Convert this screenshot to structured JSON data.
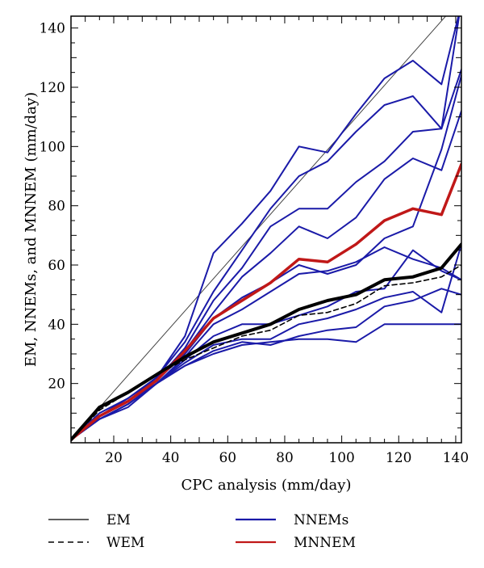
{
  "chart_data": {
    "type": "line",
    "xlabel": "CPC analysis (mm/day)",
    "ylabel": "EM, NNEMs, and MNNEM (mm/day)",
    "xlim": [
      5,
      142
    ],
    "ylim": [
      0,
      144
    ],
    "xticks": [
      20,
      40,
      60,
      80,
      100,
      120,
      140
    ],
    "yticks": [
      20,
      40,
      60,
      80,
      100,
      120,
      140
    ],
    "grid": false,
    "legend": {
      "position": "bottom",
      "items": [
        {
          "label": "EM",
          "style": "thin-solid",
          "color": "#000000"
        },
        {
          "label": "WEM",
          "style": "dashed",
          "color": "#000000"
        },
        {
          "label": "NNEMs",
          "style": "solid",
          "color": "#1a1aa8"
        },
        {
          "label": "MNNEM",
          "style": "solid",
          "color": "#c01818"
        }
      ]
    },
    "series": [
      {
        "role": "EM",
        "color": "#444444",
        "width": 1,
        "points": [
          [
            5,
            1
          ],
          [
            142,
            150
          ]
        ]
      },
      {
        "role": "NNEMs",
        "color": "#1a1aa8",
        "width": 2,
        "points": [
          [
            5,
            1
          ],
          [
            15,
            10
          ],
          [
            25,
            15
          ],
          [
            35,
            22
          ],
          [
            45,
            36
          ],
          [
            55,
            64
          ],
          [
            65,
            74
          ],
          [
            75,
            85
          ],
          [
            85,
            100
          ],
          [
            95,
            98
          ],
          [
            105,
            111
          ],
          [
            115,
            123
          ],
          [
            125,
            129
          ],
          [
            135,
            121
          ],
          [
            142,
            148
          ]
        ]
      },
      {
        "role": "NNEMs",
        "color": "#1a1aa8",
        "width": 2,
        "points": [
          [
            5,
            1
          ],
          [
            15,
            9
          ],
          [
            25,
            15
          ],
          [
            35,
            22
          ],
          [
            45,
            34
          ],
          [
            55,
            51
          ],
          [
            65,
            65
          ],
          [
            75,
            79
          ],
          [
            85,
            90
          ],
          [
            95,
            95
          ],
          [
            105,
            105
          ],
          [
            115,
            114
          ],
          [
            125,
            117
          ],
          [
            135,
            106
          ],
          [
            142,
            149
          ]
        ]
      },
      {
        "role": "NNEMs",
        "color": "#1a1aa8",
        "width": 2,
        "points": [
          [
            5,
            1
          ],
          [
            15,
            9
          ],
          [
            25,
            14
          ],
          [
            35,
            21
          ],
          [
            45,
            32
          ],
          [
            55,
            48
          ],
          [
            65,
            59
          ],
          [
            75,
            73
          ],
          [
            85,
            79
          ],
          [
            95,
            79
          ],
          [
            105,
            88
          ],
          [
            115,
            95
          ],
          [
            125,
            105
          ],
          [
            135,
            106
          ],
          [
            142,
            126
          ]
        ]
      },
      {
        "role": "NNEMs",
        "color": "#1a1aa8",
        "width": 2,
        "points": [
          [
            5,
            1
          ],
          [
            15,
            9
          ],
          [
            25,
            14
          ],
          [
            35,
            22
          ],
          [
            45,
            31
          ],
          [
            55,
            44
          ],
          [
            65,
            56
          ],
          [
            75,
            64
          ],
          [
            85,
            73
          ],
          [
            95,
            69
          ],
          [
            105,
            76
          ],
          [
            115,
            89
          ],
          [
            125,
            96
          ],
          [
            135,
            92
          ],
          [
            142,
            112
          ]
        ]
      },
      {
        "role": "NNEMs",
        "color": "#1a1aa8",
        "width": 2,
        "points": [
          [
            5,
            1
          ],
          [
            15,
            9
          ],
          [
            25,
            14
          ],
          [
            35,
            21
          ],
          [
            45,
            30
          ],
          [
            55,
            42
          ],
          [
            65,
            49
          ],
          [
            75,
            54
          ],
          [
            85,
            60
          ],
          [
            95,
            57
          ],
          [
            105,
            60
          ],
          [
            115,
            69
          ],
          [
            125,
            73
          ],
          [
            135,
            99
          ],
          [
            142,
            124
          ]
        ]
      },
      {
        "role": "NNEMs",
        "color": "#1a1aa8",
        "width": 2,
        "points": [
          [
            5,
            1
          ],
          [
            15,
            8
          ],
          [
            25,
            13
          ],
          [
            35,
            20
          ],
          [
            45,
            29
          ],
          [
            55,
            40
          ],
          [
            65,
            45
          ],
          [
            75,
            51
          ],
          [
            85,
            57
          ],
          [
            95,
            58
          ],
          [
            105,
            61
          ],
          [
            115,
            66
          ],
          [
            125,
            62
          ],
          [
            135,
            59
          ],
          [
            142,
            55
          ]
        ]
      },
      {
        "role": "NNEMs",
        "color": "#1a1aa8",
        "width": 2,
        "points": [
          [
            5,
            1
          ],
          [
            15,
            9
          ],
          [
            25,
            14
          ],
          [
            35,
            20
          ],
          [
            45,
            28
          ],
          [
            55,
            36
          ],
          [
            65,
            40
          ],
          [
            75,
            40
          ],
          [
            85,
            43
          ],
          [
            95,
            46
          ],
          [
            105,
            51
          ],
          [
            115,
            52
          ],
          [
            125,
            65
          ],
          [
            135,
            58
          ],
          [
            142,
            55
          ]
        ]
      },
      {
        "role": "NNEMs",
        "color": "#1a1aa8",
        "width": 2,
        "points": [
          [
            5,
            1
          ],
          [
            15,
            8
          ],
          [
            25,
            13
          ],
          [
            35,
            20
          ],
          [
            45,
            27
          ],
          [
            55,
            33
          ],
          [
            65,
            35
          ],
          [
            75,
            35
          ],
          [
            85,
            40
          ],
          [
            95,
            42
          ],
          [
            105,
            45
          ],
          [
            115,
            49
          ],
          [
            125,
            51
          ],
          [
            135,
            44
          ],
          [
            142,
            67
          ]
        ]
      },
      {
        "role": "NNEMs",
        "color": "#1a1aa8",
        "width": 2,
        "points": [
          [
            5,
            1
          ],
          [
            15,
            8
          ],
          [
            25,
            13
          ],
          [
            35,
            20
          ],
          [
            45,
            26
          ],
          [
            55,
            31
          ],
          [
            65,
            34
          ],
          [
            75,
            33
          ],
          [
            85,
            36
          ],
          [
            95,
            38
          ],
          [
            105,
            39
          ],
          [
            115,
            46
          ],
          [
            125,
            48
          ],
          [
            135,
            52
          ],
          [
            142,
            50
          ]
        ]
      },
      {
        "role": "NNEMs",
        "color": "#1a1aa8",
        "width": 2,
        "points": [
          [
            5,
            1
          ],
          [
            15,
            8
          ],
          [
            25,
            12
          ],
          [
            35,
            20
          ],
          [
            45,
            26
          ],
          [
            55,
            30
          ],
          [
            65,
            33
          ],
          [
            75,
            34
          ],
          [
            85,
            35
          ],
          [
            95,
            35
          ],
          [
            105,
            34
          ],
          [
            115,
            40
          ],
          [
            125,
            40
          ],
          [
            135,
            40
          ],
          [
            142,
            40
          ]
        ]
      },
      {
        "role": "MNNEM",
        "color": "#c01818",
        "width": 3.5,
        "points": [
          [
            5,
            1
          ],
          [
            15,
            9
          ],
          [
            25,
            14
          ],
          [
            35,
            21
          ],
          [
            45,
            31
          ],
          [
            55,
            42
          ],
          [
            65,
            48
          ],
          [
            75,
            54
          ],
          [
            85,
            62
          ],
          [
            95,
            61
          ],
          [
            105,
            67
          ],
          [
            115,
            75
          ],
          [
            125,
            79
          ],
          [
            135,
            77
          ],
          [
            142,
            94
          ]
        ]
      },
      {
        "role": "WEM",
        "color": "#000000",
        "width": 1.6,
        "dash": "6,4",
        "points": [
          [
            5,
            1
          ],
          [
            15,
            11
          ],
          [
            25,
            17
          ],
          [
            35,
            23
          ],
          [
            45,
            28
          ],
          [
            55,
            32
          ],
          [
            65,
            36
          ],
          [
            75,
            38
          ],
          [
            85,
            43
          ],
          [
            95,
            44
          ],
          [
            105,
            47
          ],
          [
            115,
            53
          ],
          [
            125,
            54
          ],
          [
            135,
            56
          ],
          [
            142,
            60
          ]
        ]
      },
      {
        "role": "WEM-mean",
        "color": "#000000",
        "width": 4,
        "points": [
          [
            5,
            1
          ],
          [
            15,
            12
          ],
          [
            25,
            17
          ],
          [
            35,
            23
          ],
          [
            45,
            29
          ],
          [
            55,
            34
          ],
          [
            65,
            37
          ],
          [
            75,
            40
          ],
          [
            85,
            45
          ],
          [
            95,
            48
          ],
          [
            105,
            50
          ],
          [
            115,
            55
          ],
          [
            125,
            56
          ],
          [
            135,
            59
          ],
          [
            142,
            67
          ]
        ]
      }
    ]
  }
}
